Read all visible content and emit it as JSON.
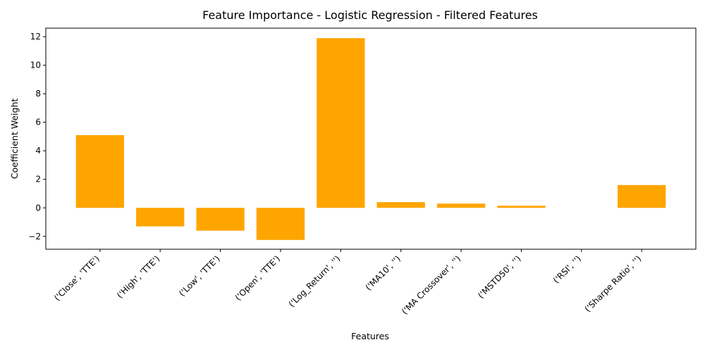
{
  "chart_data": {
    "type": "bar",
    "title": "Feature Importance - Logistic Regression - Filtered Features",
    "xlabel": "Features",
    "ylabel": "Coefficient Weight",
    "categories": [
      "('Close', 'TTE')",
      "('High', 'TTE')",
      "('Low', 'TTE')",
      "('Open', 'TTE')",
      "('Log_Return', '')",
      "('MA10', '')",
      "('MA Crossover', '')",
      "('MSTD50', '')",
      "('RSI', '')",
      "('Sharpe Ratio', '')"
    ],
    "values": [
      5.1,
      -1.3,
      -1.6,
      -2.25,
      11.9,
      0.4,
      0.3,
      0.15,
      0.0,
      1.6
    ],
    "ylim": [
      -2.9,
      12.6
    ],
    "yticks": [
      -2,
      0,
      2,
      4,
      6,
      8,
      10,
      12
    ],
    "bar_color": "#ffa500",
    "grid": false,
    "legend": "none"
  }
}
